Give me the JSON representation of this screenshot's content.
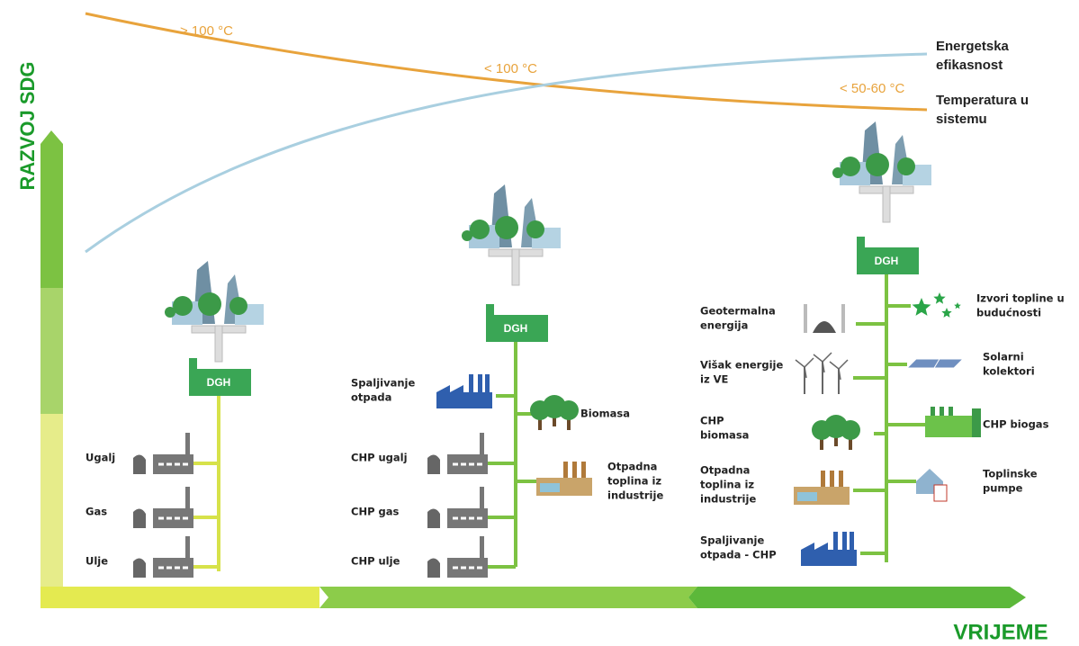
{
  "axes": {
    "y_label": "RAZVOJ SDG",
    "x_label": "VRIJEME"
  },
  "curves": {
    "temperature_levels": [
      "> 100 °C",
      "< 100 °C",
      "< 50-60 °C"
    ],
    "efficiency_label": [
      "Energetska",
      "efikasnost"
    ],
    "temperature_label": [
      "Temperatura u",
      "sistemu"
    ]
  },
  "stages": [
    {
      "hub": "DGH",
      "sources": [
        [
          "Ugalj"
        ],
        [
          "Gas"
        ],
        [
          "Ulje"
        ]
      ]
    },
    {
      "hub": "DGH",
      "sources": [
        [
          "Spaljivanje",
          "otpada"
        ],
        [
          "CHP ugalj"
        ],
        [
          "CHP gas"
        ],
        [
          "CHP ulje"
        ],
        [
          "Biomasa"
        ],
        [
          "Otpadna",
          "toplina iz",
          "industrije"
        ]
      ]
    },
    {
      "hub": "DGH",
      "sources": [
        [
          "Geotermalna",
          "energija"
        ],
        [
          "Višak energije",
          "iz VE"
        ],
        [
          "CHP",
          "biomasa"
        ],
        [
          "Otpadna",
          "toplina iz",
          "industrije"
        ],
        [
          "Spaljivanje",
          "otpada - CHP"
        ],
        [
          "Izvori topline u",
          "budućnosti"
        ],
        [
          "Solarni",
          "kolektori"
        ],
        [
          "CHP biogas"
        ],
        [
          "Toplinske",
          "pumpe"
        ]
      ]
    }
  ]
}
